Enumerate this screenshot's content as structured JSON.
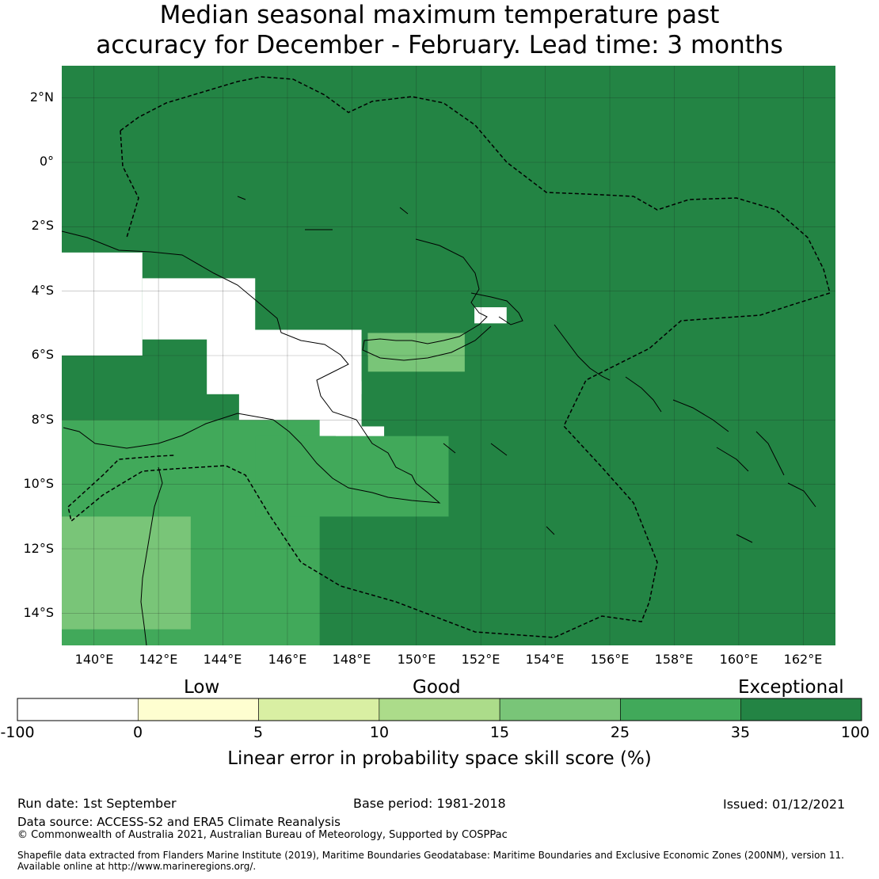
{
  "title_line1": "Median seasonal maximum temperature past",
  "title_line2": "accuracy for December - February. Lead time: 3 months",
  "map": {
    "lon_ticks": [
      "140°E",
      "142°E",
      "144°E",
      "146°E",
      "148°E",
      "150°E",
      "152°E",
      "154°E",
      "156°E",
      "158°E",
      "160°E",
      "162°E"
    ],
    "lat_ticks": [
      "2°N",
      "0°",
      "2°S",
      "4°S",
      "6°S",
      "8°S",
      "10°S",
      "12°S",
      "14°S"
    ],
    "lon_range": [
      139,
      163
    ],
    "lat_range": [
      -15,
      3
    ],
    "grid": true,
    "cell_size_deg": 0.83,
    "background_category": 6,
    "region_overrides": [
      {
        "lon": [
          139,
          141.5
        ],
        "lat": [
          -6,
          -2.8
        ],
        "category": 0
      },
      {
        "lon": [
          141.5,
          145
        ],
        "lat": [
          -5.5,
          -3.6
        ],
        "category": 0
      },
      {
        "lon": [
          143.5,
          148.3
        ],
        "lat": [
          -7.2,
          -5.2
        ],
        "category": 0
      },
      {
        "lon": [
          144.5,
          148.3
        ],
        "lat": [
          -8.5,
          -6.8
        ],
        "category": 0
      },
      {
        "lon": [
          147.5,
          149
        ],
        "lat": [
          -9.5,
          -8.2
        ],
        "category": 0
      },
      {
        "lon": [
          148.5,
          151
        ],
        "lat": [
          -6,
          -5.3
        ],
        "category": 0
      },
      {
        "lon": [
          151.8,
          152.8
        ],
        "lat": [
          -5,
          -4.5
        ],
        "category": 0
      },
      {
        "lon": [
          139,
          147
        ],
        "lat": [
          -15,
          -8
        ],
        "category": 5
      },
      {
        "lon": [
          139,
          143
        ],
        "lat": [
          -14.5,
          -11
        ],
        "category": 4
      },
      {
        "lon": [
          145,
          151
        ],
        "lat": [
          -11,
          -8.5
        ],
        "category": 5
      },
      {
        "lon": [
          148.5,
          151.5
        ],
        "lat": [
          -6.5,
          -5.3
        ],
        "category": 4
      }
    ],
    "colors": {
      "land": "none",
      "coast": "#000000",
      "eez": "#000000",
      "grid": "#1a1a1a"
    }
  },
  "legend": {
    "categories": [
      "Low",
      "Good",
      "Exceptional"
    ],
    "ticks": [
      "-100",
      "0",
      "5",
      "10",
      "15",
      "25",
      "35",
      "100"
    ],
    "colors": [
      "#ffffff",
      "#fefed0",
      "#d9efa3",
      "#acdc8a",
      "#79c578",
      "#41a95a",
      "#238444"
    ],
    "label": "Linear error in probability space skill score (%)"
  },
  "footer": {
    "run_date": "Run date: 1st September",
    "base_period": "Base period: 1981-2018",
    "issued": "Issued: 01/12/2021",
    "data_source": "Data source: ACCESS-S2 and ERA5 Climate Reanalysis",
    "copyright": "© Commonwealth of Australia 2021, Australian Bureau of Meteorology, Supported by COSPPac",
    "shapefile_line1": "Shapefile data extracted from Flanders Marine Institute (2019), Maritime Boundaries Geodatabase: Maritime Boundaries and Exclusive Economic Zones (200NM), version 11.",
    "shapefile_line2": "Available online at http://www.marineregions.org/."
  }
}
